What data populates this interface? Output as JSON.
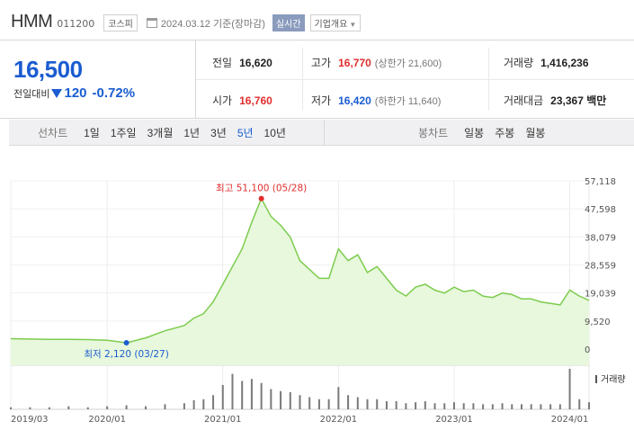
{
  "header": {
    "name": "HMM",
    "code": "011200",
    "market": "코스피",
    "date": "2024.03.12 기준(장마감)",
    "realtime_label": "실시간",
    "overview_label": "기업개요",
    "overview_icon": "chevron-down-icon",
    "calendar_icon": "calendar-icon"
  },
  "price": {
    "current": "16,500",
    "change_label": "전일대비",
    "direction_icon": "down-triangle-icon",
    "change": "120",
    "change_pct": "-0.72%"
  },
  "stats": {
    "prev_close_label": "전일",
    "prev_close": "16,620",
    "high_label": "고가",
    "high": "16,770",
    "upper_limit": "(상한가 21,600)",
    "volume_label": "거래량",
    "volume": "1,416,236",
    "open_label": "시가",
    "open": "16,760",
    "low_label": "저가",
    "low": "16,420",
    "lower_limit": "(하한가 11,640)",
    "value_label": "거래대금",
    "value": "23,367 백만"
  },
  "tabs": {
    "line_label": "선차트",
    "line_tabs": [
      "1일",
      "1주일",
      "3개월",
      "1년",
      "3년",
      "5년",
      "10년"
    ],
    "active_line_tab": "5년",
    "candle_label": "봉차트",
    "candle_tabs": [
      "일봉",
      "주봉",
      "월봉"
    ]
  },
  "colors": {
    "up": "#e12d2d",
    "down": "#1a5cd1",
    "line": "#7ccc4e",
    "fill": "#e8f8dc"
  },
  "chart_data": {
    "type": "area",
    "series_name": "",
    "ylim": [
      0,
      57118
    ],
    "yticks": [
      "57,118",
      "47,598",
      "38,079",
      "28,559",
      "19,039",
      "9,520",
      "0"
    ],
    "xticks": [
      "2019/03",
      "2020/01",
      "2021/01",
      "2022/01",
      "2023/01",
      "2024/01"
    ],
    "x": [
      "2019/03",
      "2019/05",
      "2019/07",
      "2019/09",
      "2019/11",
      "2020/01",
      "2020/03",
      "2020/05",
      "2020/07",
      "2020/09",
      "2020/10",
      "2020/11",
      "2020/12",
      "2021/01",
      "2021/02",
      "2021/03",
      "2021/04",
      "2021/05",
      "2021/06",
      "2021/07",
      "2021/08",
      "2021/09",
      "2021/10",
      "2021/11",
      "2021/12",
      "2022/01",
      "2022/02",
      "2022/03",
      "2022/04",
      "2022/05",
      "2022/06",
      "2022/07",
      "2022/08",
      "2022/09",
      "2022/10",
      "2022/11",
      "2022/12",
      "2023/01",
      "2023/02",
      "2023/03",
      "2023/04",
      "2023/05",
      "2023/06",
      "2023/07",
      "2023/08",
      "2023/09",
      "2023/10",
      "2023/11",
      "2023/12",
      "2024/01",
      "2024/02",
      "2024/03"
    ],
    "values": [
      3500,
      3400,
      3300,
      3300,
      3200,
      3000,
      2120,
      3800,
      6200,
      8000,
      10500,
      12000,
      16000,
      22000,
      28000,
      34000,
      43000,
      51100,
      45000,
      42000,
      38000,
      30000,
      27000,
      24000,
      24000,
      34000,
      30000,
      32000,
      26000,
      28000,
      24000,
      20000,
      18000,
      21000,
      22000,
      20000,
      19000,
      21000,
      19500,
      20000,
      18000,
      17500,
      19000,
      18500,
      17000,
      17000,
      16000,
      15500,
      15000,
      20000,
      18000,
      16500
    ],
    "annotations": [
      {
        "label": "최고 51,100 (05/28)",
        "x": "2021/05",
        "value": 51100,
        "color": "#e12d2d"
      },
      {
        "label": "최저 2,120 (03/27)",
        "x": "2020/03",
        "value": 2120,
        "color": "#1a5cd1"
      }
    ],
    "volume_label": "거래량",
    "volume": [
      2,
      2,
      2,
      3,
      2,
      3,
      4,
      3,
      5,
      6,
      9,
      10,
      14,
      24,
      35,
      28,
      30,
      26,
      20,
      18,
      17,
      14,
      12,
      10,
      10,
      22,
      14,
      12,
      10,
      10,
      8,
      8,
      6,
      7,
      8,
      6,
      6,
      7,
      6,
      6,
      5,
      5,
      6,
      5,
      5,
      5,
      5,
      5,
      5,
      40,
      10,
      7
    ],
    "grid": true
  }
}
